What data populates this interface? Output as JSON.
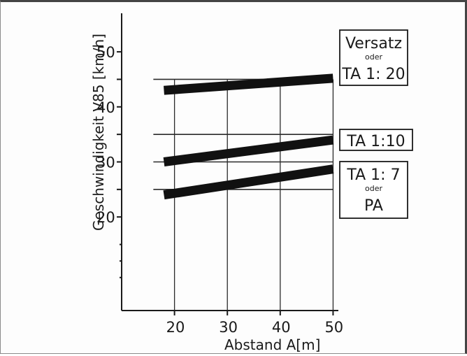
{
  "chart_data": {
    "type": "line",
    "xlabel": "Abstand A[m]",
    "ylabel": "Geschwindigkeit V85 [km/h]",
    "xlim": [
      10,
      51
    ],
    "ylim": [
      3,
      57
    ],
    "x_ticks": [
      20,
      30,
      40,
      50
    ],
    "y_ticks": [
      20,
      30,
      40,
      50
    ],
    "y_minor_ticks": [
      25,
      35,
      45
    ],
    "grid": true,
    "reference_lines": [
      {
        "y": 45,
        "x": [
          16,
          50
        ]
      },
      {
        "y": 35,
        "x": [
          16,
          50
        ]
      },
      {
        "y": 30,
        "x": [
          16,
          50
        ]
      },
      {
        "y": 25,
        "x": [
          16,
          50
        ]
      }
    ],
    "series": [
      {
        "x": [
          18,
          50
        ],
        "y": [
          43,
          45.2
        ],
        "label_lines": [
          "Versatz",
          "oder",
          "TA 1: 20"
        ]
      },
      {
        "x": [
          18,
          50
        ],
        "y": [
          30,
          34
        ],
        "label_lines": [
          "TA 1:10"
        ]
      },
      {
        "x": [
          18,
          50
        ],
        "y": [
          24,
          28.7
        ],
        "label_lines": [
          "TA 1: 7",
          "oder",
          "PA"
        ]
      }
    ]
  }
}
